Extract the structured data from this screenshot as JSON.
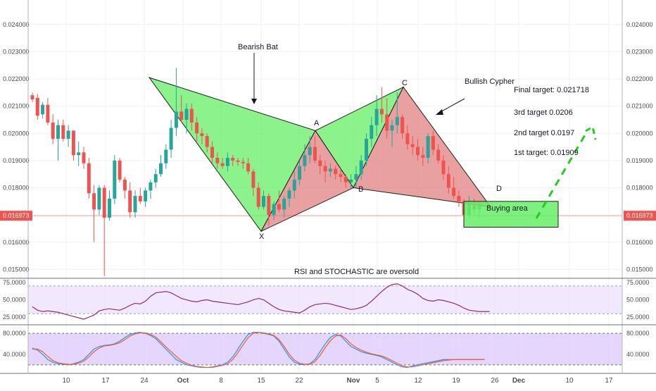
{
  "chart_data": [
    {
      "type": "candlestick",
      "ylim": [
        0.0147,
        0.0249
      ],
      "y_ticks": [
        "0.015000",
        "0.016000",
        "0.017000",
        "0.018000",
        "0.019000",
        "0.020000",
        "0.021000",
        "0.022000",
        "0.023000",
        "0.024000"
      ],
      "x_ticks": [
        "10",
        "17",
        "24",
        "Oct",
        "8",
        "15",
        "22",
        "Nov",
        "5",
        "12",
        "19",
        "26",
        "Dec",
        "10",
        "17"
      ],
      "last_price_label": "0.016973",
      "last_price": 0.016973,
      "candles": [
        {
          "o": 0.0214,
          "h": 0.0215,
          "l": 0.02115,
          "c": 0.02125
        },
        {
          "o": 0.0213,
          "h": 0.02145,
          "l": 0.0205,
          "c": 0.02065
        },
        {
          "o": 0.0207,
          "h": 0.02115,
          "l": 0.02055,
          "c": 0.02105
        },
        {
          "o": 0.02105,
          "h": 0.0213,
          "l": 0.0203,
          "c": 0.0204
        },
        {
          "o": 0.0204,
          "h": 0.0207,
          "l": 0.0196,
          "c": 0.0198
        },
        {
          "o": 0.0198,
          "h": 0.0205,
          "l": 0.019,
          "c": 0.0203
        },
        {
          "o": 0.0203,
          "h": 0.0205,
          "l": 0.0197,
          "c": 0.0198
        },
        {
          "o": 0.0198,
          "h": 0.0203,
          "l": 0.0195,
          "c": 0.0201
        },
        {
          "o": 0.0201,
          "h": 0.0201,
          "l": 0.019,
          "c": 0.0192
        },
        {
          "o": 0.0192,
          "h": 0.0197,
          "l": 0.0188,
          "c": 0.0193
        },
        {
          "o": 0.0193,
          "h": 0.0195,
          "l": 0.0187,
          "c": 0.0189
        },
        {
          "o": 0.0189,
          "h": 0.0191,
          "l": 0.0176,
          "c": 0.0178
        },
        {
          "o": 0.0178,
          "h": 0.0181,
          "l": 0.016,
          "c": 0.0172
        },
        {
          "o": 0.0172,
          "h": 0.0181,
          "l": 0.017,
          "c": 0.018
        },
        {
          "o": 0.018,
          "h": 0.0181,
          "l": 0.01475,
          "c": 0.0169
        },
        {
          "o": 0.0169,
          "h": 0.0179,
          "l": 0.0168,
          "c": 0.0176
        },
        {
          "o": 0.0176,
          "h": 0.0192,
          "l": 0.0174,
          "c": 0.019
        },
        {
          "o": 0.019,
          "h": 0.0191,
          "l": 0.0182,
          "c": 0.0183
        },
        {
          "o": 0.0183,
          "h": 0.0184,
          "l": 0.0176,
          "c": 0.0179
        },
        {
          "o": 0.0179,
          "h": 0.0182,
          "l": 0.0169,
          "c": 0.0171
        },
        {
          "o": 0.0171,
          "h": 0.0179,
          "l": 0.0169,
          "c": 0.0177
        },
        {
          "o": 0.0177,
          "h": 0.018,
          "l": 0.0174,
          "c": 0.0175
        },
        {
          "o": 0.0175,
          "h": 0.018,
          "l": 0.0173,
          "c": 0.0179
        },
        {
          "o": 0.0179,
          "h": 0.0183,
          "l": 0.0176,
          "c": 0.0182
        },
        {
          "o": 0.0182,
          "h": 0.0187,
          "l": 0.018,
          "c": 0.0185
        },
        {
          "o": 0.0185,
          "h": 0.0192,
          "l": 0.0184,
          "c": 0.0189
        },
        {
          "o": 0.0189,
          "h": 0.0196,
          "l": 0.0187,
          "c": 0.0194
        },
        {
          "o": 0.0194,
          "h": 0.0205,
          "l": 0.0191,
          "c": 0.0202
        },
        {
          "o": 0.0202,
          "h": 0.0224,
          "l": 0.0199,
          "c": 0.0208
        },
        {
          "o": 0.0208,
          "h": 0.0214,
          "l": 0.0204,
          "c": 0.0205
        },
        {
          "o": 0.0205,
          "h": 0.0211,
          "l": 0.02,
          "c": 0.0209
        },
        {
          "o": 0.0209,
          "h": 0.0211,
          "l": 0.0201,
          "c": 0.0204
        },
        {
          "o": 0.0204,
          "h": 0.0206,
          "l": 0.0197,
          "c": 0.02
        },
        {
          "o": 0.02,
          "h": 0.0202,
          "l": 0.0196,
          "c": 0.0199
        },
        {
          "o": 0.0199,
          "h": 0.02,
          "l": 0.0193,
          "c": 0.0195
        },
        {
          "o": 0.0195,
          "h": 0.0197,
          "l": 0.0189,
          "c": 0.0191
        },
        {
          "o": 0.0191,
          "h": 0.0193,
          "l": 0.0187,
          "c": 0.0189
        },
        {
          "o": 0.0189,
          "h": 0.0191,
          "l": 0.0187,
          "c": 0.0188
        },
        {
          "o": 0.0188,
          "h": 0.0193,
          "l": 0.0186,
          "c": 0.0191
        },
        {
          "o": 0.0191,
          "h": 0.0192,
          "l": 0.0188,
          "c": 0.019
        },
        {
          "o": 0.019,
          "h": 0.0191,
          "l": 0.0188,
          "c": 0.01895
        },
        {
          "o": 0.01895,
          "h": 0.0191,
          "l": 0.0187,
          "c": 0.0189
        },
        {
          "o": 0.0189,
          "h": 0.0191,
          "l": 0.0185,
          "c": 0.0186
        },
        {
          "o": 0.0186,
          "h": 0.0187,
          "l": 0.0177,
          "c": 0.018
        },
        {
          "o": 0.018,
          "h": 0.0182,
          "l": 0.0172,
          "c": 0.0173
        },
        {
          "o": 0.0173,
          "h": 0.0179,
          "l": 0.0172,
          "c": 0.0177
        },
        {
          "o": 0.0177,
          "h": 0.0178,
          "l": 0.0166,
          "c": 0.017
        },
        {
          "o": 0.017,
          "h": 0.0175,
          "l": 0.0168,
          "c": 0.0174
        },
        {
          "o": 0.0174,
          "h": 0.0179,
          "l": 0.0171,
          "c": 0.0172
        },
        {
          "o": 0.0172,
          "h": 0.0177,
          "l": 0.0169,
          "c": 0.0176
        },
        {
          "o": 0.0176,
          "h": 0.018,
          "l": 0.0173,
          "c": 0.0179
        },
        {
          "o": 0.0179,
          "h": 0.0186,
          "l": 0.0176,
          "c": 0.0183
        },
        {
          "o": 0.0183,
          "h": 0.019,
          "l": 0.0181,
          "c": 0.0188
        },
        {
          "o": 0.0188,
          "h": 0.0196,
          "l": 0.0186,
          "c": 0.0192
        },
        {
          "o": 0.0192,
          "h": 0.0199,
          "l": 0.0189,
          "c": 0.0195
        },
        {
          "o": 0.0195,
          "h": 0.0199,
          "l": 0.0189,
          "c": 0.019
        },
        {
          "o": 0.019,
          "h": 0.0192,
          "l": 0.0185,
          "c": 0.0188
        },
        {
          "o": 0.0188,
          "h": 0.019,
          "l": 0.0182,
          "c": 0.0186
        },
        {
          "o": 0.0186,
          "h": 0.0189,
          "l": 0.0184,
          "c": 0.0187
        },
        {
          "o": 0.0187,
          "h": 0.0188,
          "l": 0.0183,
          "c": 0.0185
        },
        {
          "o": 0.0185,
          "h": 0.0187,
          "l": 0.0182,
          "c": 0.0184
        },
        {
          "o": 0.0184,
          "h": 0.0185,
          "l": 0.018,
          "c": 0.0182
        },
        {
          "o": 0.0182,
          "h": 0.0185,
          "l": 0.018,
          "c": 0.0183
        },
        {
          "o": 0.0183,
          "h": 0.0188,
          "l": 0.018,
          "c": 0.0185
        },
        {
          "o": 0.0185,
          "h": 0.0192,
          "l": 0.0183,
          "c": 0.019
        },
        {
          "o": 0.019,
          "h": 0.02,
          "l": 0.0188,
          "c": 0.0198
        },
        {
          "o": 0.0198,
          "h": 0.0206,
          "l": 0.0195,
          "c": 0.0203
        },
        {
          "o": 0.0203,
          "h": 0.0214,
          "l": 0.0199,
          "c": 0.0209
        },
        {
          "o": 0.0209,
          "h": 0.0217,
          "l": 0.0204,
          "c": 0.0207
        },
        {
          "o": 0.0207,
          "h": 0.0213,
          "l": 0.0198,
          "c": 0.0201
        },
        {
          "o": 0.0201,
          "h": 0.0205,
          "l": 0.0195,
          "c": 0.0203
        },
        {
          "o": 0.0203,
          "h": 0.0215,
          "l": 0.02,
          "c": 0.0206
        },
        {
          "o": 0.0206,
          "h": 0.0207,
          "l": 0.0198,
          "c": 0.02
        },
        {
          "o": 0.02,
          "h": 0.0203,
          "l": 0.0194,
          "c": 0.0196
        },
        {
          "o": 0.0196,
          "h": 0.0199,
          "l": 0.0192,
          "c": 0.0195
        },
        {
          "o": 0.0195,
          "h": 0.0198,
          "l": 0.019,
          "c": 0.0192
        },
        {
          "o": 0.0192,
          "h": 0.0195,
          "l": 0.0188,
          "c": 0.0191
        },
        {
          "o": 0.0191,
          "h": 0.02,
          "l": 0.0189,
          "c": 0.0199
        },
        {
          "o": 0.0199,
          "h": 0.0201,
          "l": 0.0192,
          "c": 0.0194
        },
        {
          "o": 0.0194,
          "h": 0.0196,
          "l": 0.0189,
          "c": 0.019
        },
        {
          "o": 0.019,
          "h": 0.0192,
          "l": 0.0183,
          "c": 0.0185
        },
        {
          "o": 0.0185,
          "h": 0.0188,
          "l": 0.0178,
          "c": 0.018
        },
        {
          "o": 0.018,
          "h": 0.0184,
          "l": 0.0176,
          "c": 0.0177
        },
        {
          "o": 0.0177,
          "h": 0.0179,
          "l": 0.0173,
          "c": 0.0175
        },
        {
          "o": 0.0175,
          "h": 0.0176,
          "l": 0.0166,
          "c": 0.017
        },
        {
          "o": 0.017,
          "h": 0.0177,
          "l": 0.0169,
          "c": 0.0174
        },
        {
          "o": 0.0174,
          "h": 0.0176,
          "l": 0.017,
          "c": 0.0172
        },
        {
          "o": 0.0172,
          "h": 0.0175,
          "l": 0.0169,
          "c": 0.0174
        }
      ],
      "patterns": [
        {
          "name": "Bearish Bat",
          "points": [
            [
              "",
              0.02205
            ],
            [
              "X",
              0.0164
            ],
            [
              "A",
              0.0201
            ],
            [
              "B",
              0.018
            ],
            [
              "C",
              0.0217
            ],
            [
              "D",
              0.0173
            ]
          ]
        }
      ],
      "annotations": [
        "Bearish Bat",
        "Bullish Cypher",
        "X",
        "A",
        "B",
        "C",
        "D",
        "Buying area",
        "Final target: 0.021718",
        "3rd target 0.0206",
        "2nd target 0.0197",
        "1st target: 0.01909",
        "RSI and STOCHASTIC are oversold"
      ],
      "targets": [
        {
          "label": "Final target: 0.021718",
          "value": 0.021718
        },
        {
          "label": "3rd target 0.0206",
          "value": 0.0206
        },
        {
          "label": "2nd target 0.0197",
          "value": 0.0197
        },
        {
          "label": "1st target: 0.01909",
          "value": 0.01909
        }
      ],
      "buying_area": [
        0.01655,
        0.0175
      ],
      "colors": {
        "up": "#26a69a",
        "down": "#ef5350",
        "pattern_green": "#66ee66",
        "pattern_red": "#e08080",
        "price_line": "#f7a1a1",
        "price_badge": "#ef5350"
      }
    },
    {
      "type": "line",
      "name": "RSI",
      "ylim": [
        15,
        80
      ],
      "y_ticks": [
        "25.0000",
        "50.0000",
        "75.0000"
      ],
      "bands": [
        30,
        70
      ],
      "values": [
        40,
        35,
        33,
        34,
        33,
        32,
        30,
        28,
        26,
        24,
        22,
        25,
        28,
        34,
        36,
        37,
        36,
        35,
        38,
        42,
        45,
        44,
        48,
        55,
        60,
        61,
        62,
        60,
        56,
        52,
        50,
        48,
        47,
        49,
        50,
        48,
        47,
        46,
        45,
        44,
        43,
        45,
        47,
        50,
        52,
        50,
        45,
        40,
        36,
        34,
        33,
        32,
        31,
        35,
        40,
        43,
        44,
        45,
        44,
        42,
        40,
        38,
        36,
        37,
        39,
        42,
        48,
        55,
        62,
        68,
        72,
        73,
        70,
        65,
        62,
        58,
        52,
        49,
        48,
        50,
        49,
        47,
        45,
        42,
        38,
        35,
        34,
        33,
        33,
        33
      ]
    },
    {
      "type": "line",
      "name": "Stochastic",
      "ylim": [
        5,
        95
      ],
      "y_ticks": [
        "40.0000",
        "80.0000"
      ],
      "bands": [
        20,
        80
      ],
      "series": [
        {
          "values": [
            52,
            48,
            40,
            30,
            25,
            22,
            21,
            20,
            22,
            25,
            30,
            40,
            50,
            55,
            57,
            58,
            60,
            65,
            72,
            78,
            81,
            82,
            80,
            76,
            70,
            60,
            50,
            40,
            30,
            25,
            20,
            18,
            16,
            15,
            15,
            16,
            18,
            20,
            25,
            35,
            50,
            65,
            78,
            82,
            82,
            80,
            78,
            75,
            65,
            50,
            35,
            25,
            21,
            20,
            22,
            30,
            45,
            60,
            72,
            78,
            75,
            65,
            55,
            50,
            45,
            42,
            40,
            38,
            35,
            30,
            25,
            20,
            16,
            15,
            18,
            20,
            22,
            24,
            26,
            28,
            30,
            30,
            30,
            30,
            30,
            30,
            30,
            30,
            30
          ]
        },
        {
          "values": [
            50,
            50,
            45,
            36,
            28,
            24,
            22,
            21,
            21,
            23,
            27,
            35,
            45,
            52,
            56,
            57,
            59,
            62,
            68,
            75,
            79,
            81,
            81,
            78,
            73,
            64,
            54,
            45,
            36,
            28,
            23,
            19,
            17,
            16,
            15,
            15,
            17,
            19,
            22,
            30,
            43,
            58,
            72,
            80,
            82,
            81,
            79,
            76,
            68,
            55,
            40,
            29,
            23,
            21,
            21,
            26,
            38,
            53,
            66,
            75,
            77,
            70,
            60,
            53,
            48,
            44,
            41,
            39,
            37,
            33,
            28,
            23,
            18,
            16,
            16,
            18,
            20,
            22,
            24,
            26,
            28,
            29,
            30,
            30,
            30,
            30,
            30,
            30,
            30
          ]
        }
      ]
    }
  ]
}
